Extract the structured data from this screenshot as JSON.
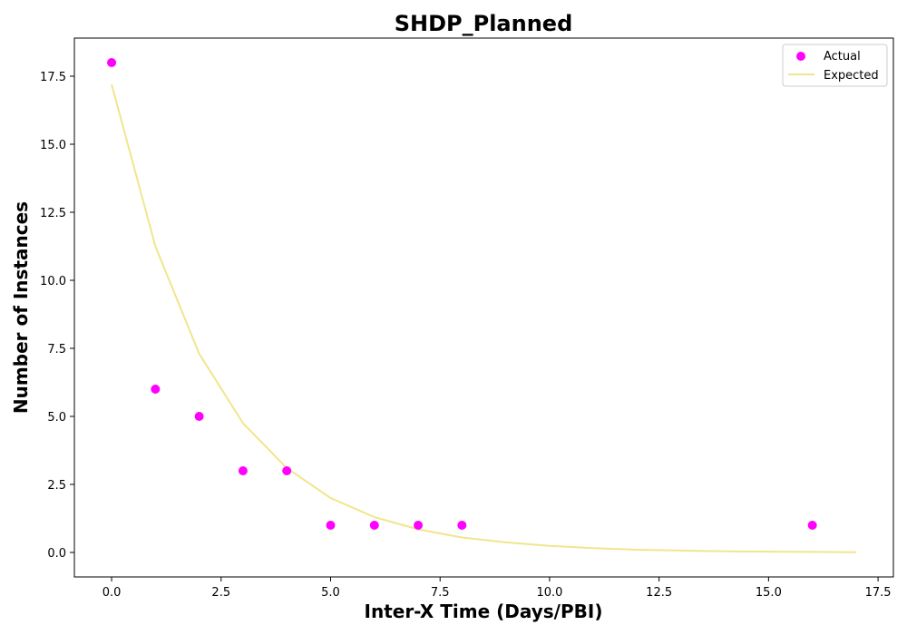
{
  "chart_data": {
    "type": "scatter",
    "title": "SHDP_Planned",
    "xlabel": "Inter-X Time (Days/PBI)",
    "ylabel": "Number of Instances",
    "xlim": [
      -0.85,
      17.85
    ],
    "ylim": [
      -0.9,
      18.9
    ],
    "xticks": [
      0.0,
      2.5,
      5.0,
      7.5,
      10.0,
      12.5,
      15.0,
      17.5
    ],
    "xtick_labels": [
      "0.0",
      "2.5",
      "5.0",
      "7.5",
      "10.0",
      "12.5",
      "15.0",
      "17.5"
    ],
    "yticks": [
      0.0,
      2.5,
      5.0,
      7.5,
      10.0,
      12.5,
      15.0,
      17.5
    ],
    "ytick_labels": [
      "0.0",
      "2.5",
      "5.0",
      "7.5",
      "10.0",
      "12.5",
      "15.0",
      "17.5"
    ],
    "grid": false,
    "legend": "top-right",
    "series": [
      {
        "name": "Actual",
        "kind": "scatter",
        "color": "#ff00ff",
        "x": [
          0,
          1,
          2,
          3,
          4,
          5,
          6,
          7,
          8,
          16
        ],
        "y": [
          18,
          6,
          5,
          3,
          3,
          1,
          1,
          1,
          1,
          1
        ]
      },
      {
        "name": "Expected",
        "kind": "line",
        "color": "#f0e68c",
        "x": [
          0,
          1,
          2,
          3,
          4,
          5,
          6,
          7,
          8,
          9,
          10,
          11,
          12,
          13,
          14,
          15,
          16,
          17
        ],
        "y": [
          17.2,
          11.25,
          7.3,
          4.75,
          3.1,
          2.0,
          1.3,
          0.85,
          0.55,
          0.37,
          0.24,
          0.16,
          0.1,
          0.07,
          0.04,
          0.03,
          0.02,
          0.01
        ]
      }
    ]
  }
}
